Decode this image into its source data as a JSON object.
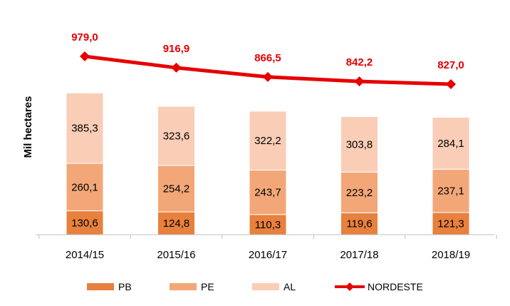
{
  "chart_data": {
    "type": "bar",
    "stacked": true,
    "ylabel": "Mil hectares",
    "categories": [
      "2014/15",
      "2015/16",
      "2016/17",
      "2017/18",
      "2018/19"
    ],
    "series": [
      {
        "name": "PB",
        "color": "#e8803e",
        "values": [
          130.6,
          124.8,
          110.3,
          119.6,
          121.3
        ],
        "labels": [
          "130,6",
          "124,8",
          "110,3",
          "119,6",
          "121,3"
        ]
      },
      {
        "name": "PE",
        "color": "#f3a778",
        "values": [
          260.1,
          254.2,
          243.7,
          223.2,
          237.1
        ],
        "labels": [
          "260,1",
          "254,2",
          "243,7",
          "223,2",
          "237,1"
        ]
      },
      {
        "name": "AL",
        "color": "#f9cdb6",
        "values": [
          385.3,
          323.6,
          322.2,
          303.8,
          284.1
        ],
        "labels": [
          "385,3",
          "323,6",
          "322,2",
          "303,8",
          "284,1"
        ]
      }
    ],
    "line": {
      "name": "NORDESTE",
      "color": "#e60000",
      "values": [
        979.0,
        916.9,
        866.5,
        842.2,
        827.0
      ],
      "labels": [
        "979,0",
        "916,9",
        "866,5",
        "842,2",
        "827,0"
      ]
    },
    "grid": false,
    "legend_position": "bottom"
  }
}
